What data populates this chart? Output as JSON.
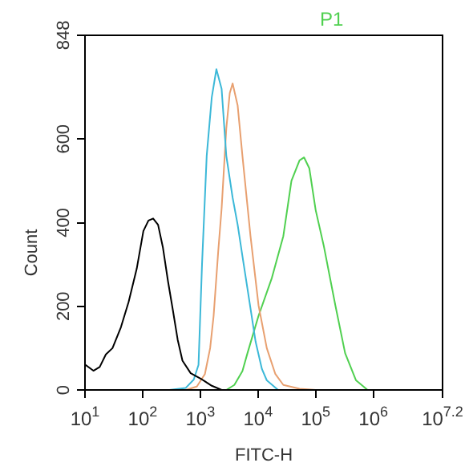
{
  "chart_data": {
    "type": "line",
    "xlabel": "FITC-H",
    "ylabel": "Count",
    "log": "x",
    "annotations": [
      "P1"
    ],
    "xlim": [
      10,
      15848932
    ],
    "xticks": [
      {
        "value": 10,
        "label": "10$^{1}$"
      },
      {
        "value": 100,
        "label": "10$^{2}$"
      },
      {
        "value": 1000,
        "label": "10$^{3}$"
      },
      {
        "value": 10000,
        "label": "10$^{4}$"
      },
      {
        "value": 100000,
        "label": "10$^{5}$"
      },
      {
        "value": 1000000,
        "label": "10$^{6}$"
      },
      {
        "value": 15848932,
        "label": "10$^{7.2}$"
      }
    ],
    "ylim": [
      0,
      848
    ],
    "yticks": [
      0,
      200,
      400,
      600,
      848
    ],
    "series": [
      {
        "color": "#000000",
        "x": [
          10,
          14,
          18,
          23,
          30,
          42,
          57,
          79,
          103,
          126,
          152,
          185,
          225,
          275,
          335,
          405,
          490,
          680,
          1070,
          1580,
          2340
        ],
        "values": [
          61,
          46,
          55,
          85,
          100,
          150,
          210,
          290,
          380,
          405,
          410,
          395,
          340,
          260,
          190,
          120,
          70,
          40,
          25,
          10,
          0
        ]
      },
      {
        "color": "#3cb8d8",
        "x": [
          290,
          560,
          770,
          930,
          1070,
          1290,
          1580,
          1900,
          2340,
          2820,
          3630,
          4440,
          5370,
          6570,
          9100,
          11700,
          14200,
          22300
        ],
        "values": [
          0,
          5,
          25,
          60,
          300,
          560,
          700,
          767,
          720,
          560,
          460,
          395,
          320,
          242,
          115,
          50,
          23,
          0
        ]
      },
      {
        "color": "#e8a070",
        "x": [
          560,
          870,
          1200,
          1480,
          1700,
          2040,
          2340,
          2820,
          3240,
          3630,
          4440,
          5370,
          7410,
          10200,
          14200,
          20000,
          27500,
          52500,
          100000
        ],
        "values": [
          0,
          8,
          38,
          100,
          177,
          330,
          434,
          625,
          710,
          733,
          680,
          560,
          368,
          203,
          100,
          38,
          12,
          3,
          0
        ]
      },
      {
        "color": "#50d050",
        "x": [
          2820,
          3890,
          5370,
          6570,
          10200,
          17400,
          27500,
          38000,
          52500,
          63000,
          77600,
          100000,
          138000,
          219000,
          324000,
          501000,
          794000
        ],
        "values": [
          0,
          12,
          45,
          88,
          177,
          268,
          368,
          500,
          549,
          556,
          530,
          430,
          345,
          203,
          88,
          23,
          0
        ]
      }
    ]
  }
}
